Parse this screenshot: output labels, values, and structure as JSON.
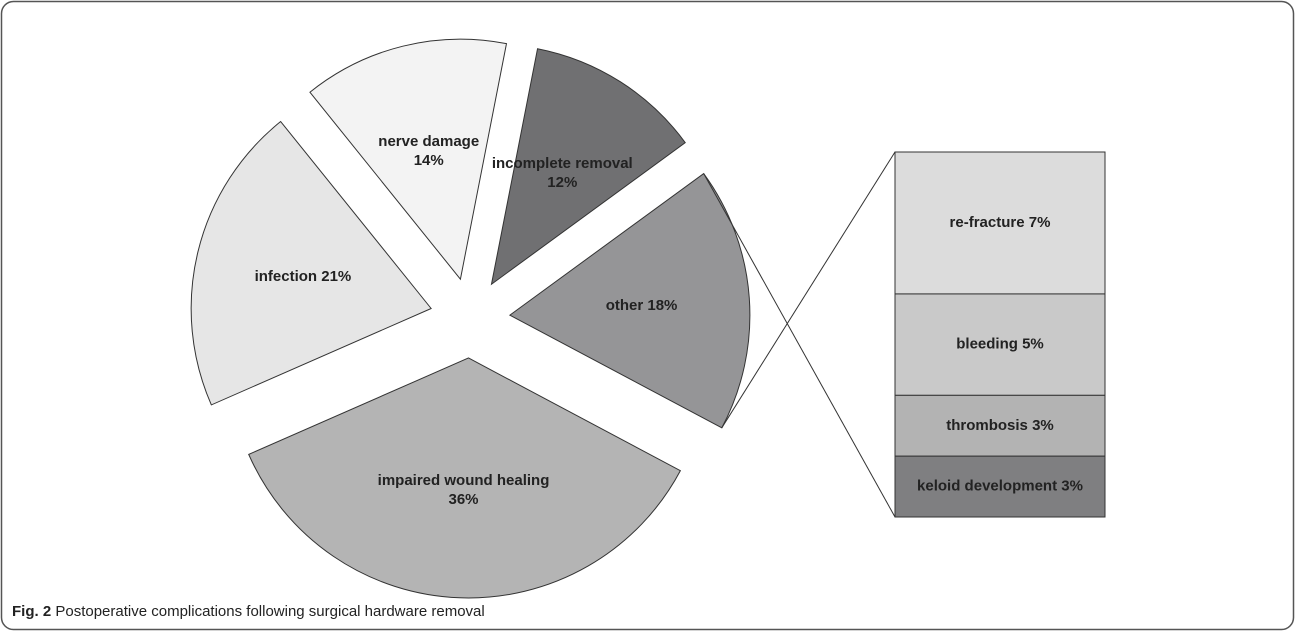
{
  "chart_data": [
    {
      "type": "pie",
      "categories": [
        "impaired wound healing",
        "infection",
        "nerve damage",
        "incomplete removal",
        "other"
      ],
      "values": [
        36,
        21,
        14,
        12,
        18
      ],
      "value_labels": [
        "36%",
        "21%",
        "14%",
        "12%",
        "18%"
      ],
      "colors": [
        "#b4b4b4",
        "#e6e6e6",
        "#f3f3f3",
        "#707072",
        "#959597"
      ]
    },
    {
      "type": "bar",
      "categories": [
        "re-fracture",
        "bleeding",
        "thrombosis",
        "keloid development"
      ],
      "values": [
        7,
        5,
        3,
        3
      ],
      "value_labels": [
        "7%",
        "5%",
        "3%",
        "3%"
      ],
      "colors": [
        "#dcdcdc",
        "#c9c9c9",
        "#b3b3b3",
        "#7f7f81"
      ]
    }
  ],
  "caption": {
    "label": "Fig. 2",
    "text": "Postoperative complications following surgical hardware removal"
  }
}
